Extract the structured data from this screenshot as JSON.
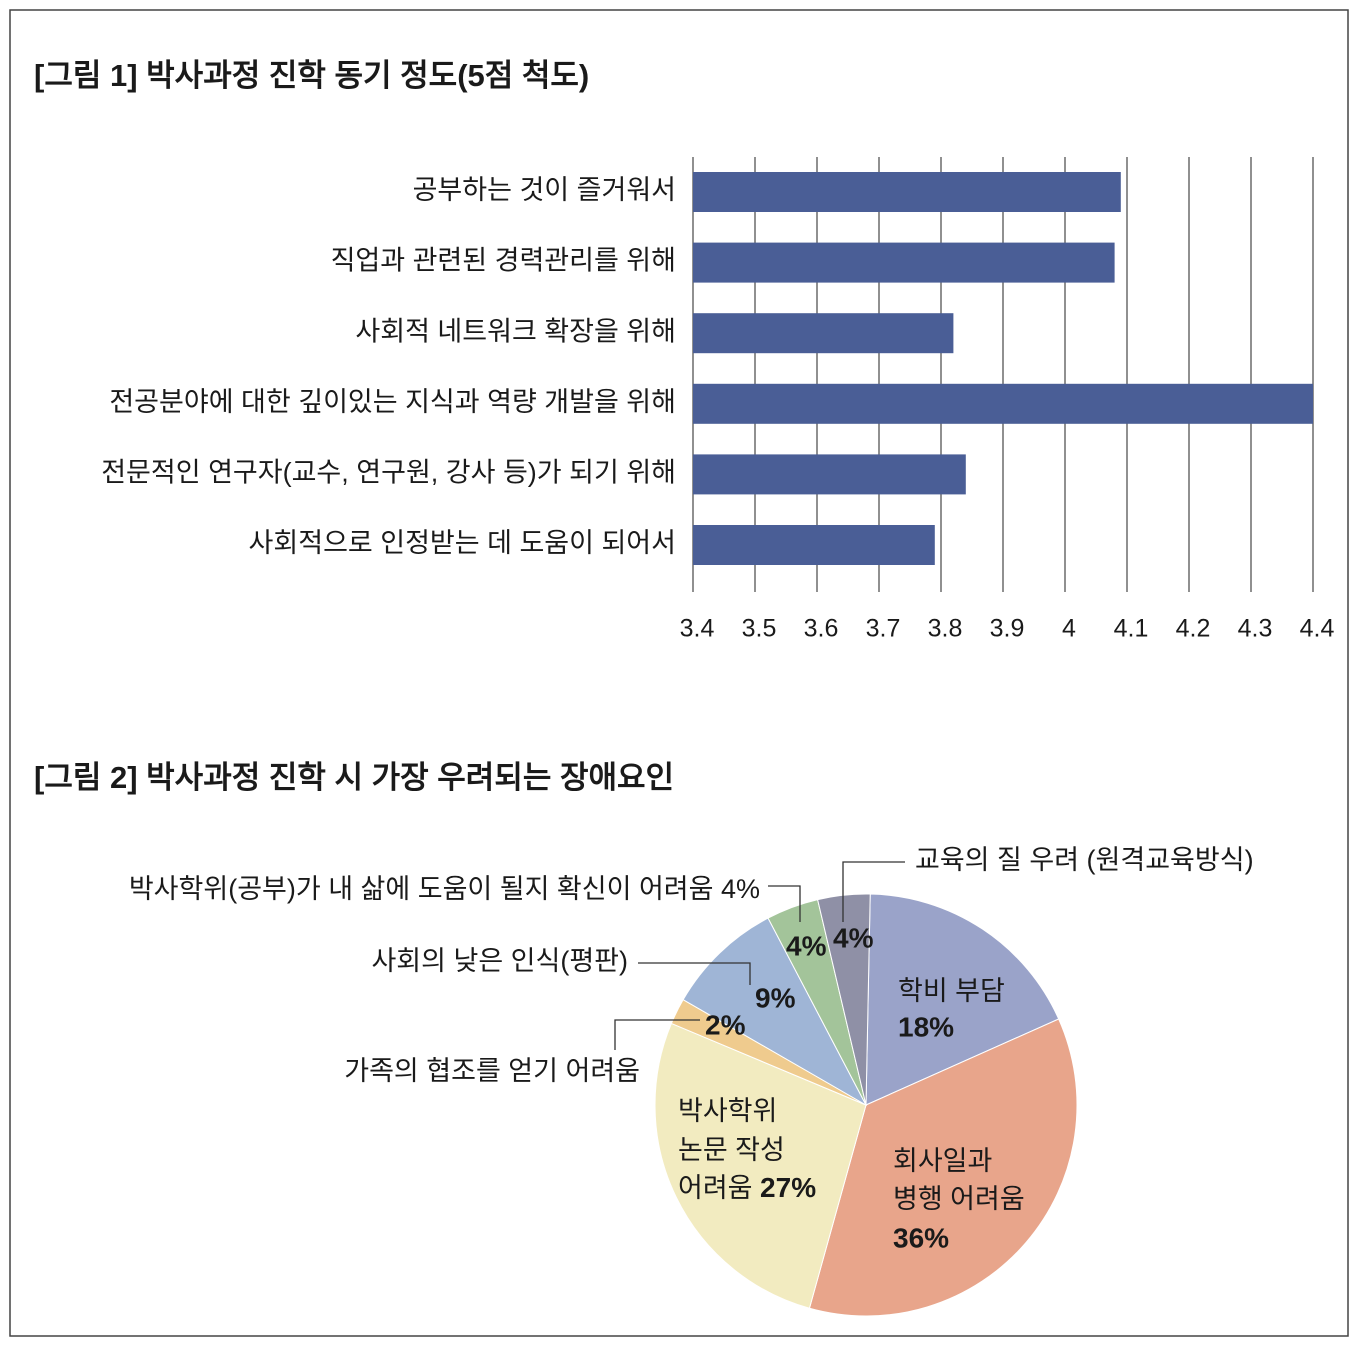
{
  "chart_data": [
    {
      "type": "hbar",
      "title": "[그림 1] 박사과정 진학 동기 정도(5점 척도)",
      "categories": [
        "공부하는 것이 즐거워서",
        "직업과 관련된 경력관리를 위해",
        "사회적 네트워크 확장을 위해",
        "전공분야에 대한 깊이있는 지식과 역량 개발을 위해",
        "전문적인 연구자(교수, 연구원, 강사 등)가 되기 위해",
        "사회적으로 인정받는 데 도움이 되어서"
      ],
      "values": [
        4.09,
        4.08,
        3.82,
        4.4,
        3.84,
        3.79
      ],
      "color": "#4a5e96",
      "xlim": [
        3.4,
        4.4
      ],
      "xticks": [
        3.4,
        3.5,
        3.6,
        3.7,
        3.8,
        3.9,
        4,
        4.1,
        4.2,
        4.3,
        4.4
      ],
      "grid": true
    },
    {
      "type": "pie",
      "title": "[그림 2] 박사과정 진학 시 가장 우려되는 장애요인",
      "categories": [
        [
          "학비 부담"
        ],
        [
          "회사일과",
          "병행 어려움"
        ],
        [
          "박사학위",
          "논문 작성",
          "어려움"
        ],
        [
          "가족의 협조를 얻기 어려움"
        ],
        [
          "사회의 낮은 인식(평판)"
        ],
        [
          "박사학위(공부)가 내 삶에 도움이 될지 확신이 어려움 4%"
        ],
        [
          "교육의 질 우려 (원격교육방식)"
        ]
      ],
      "values": [
        18,
        36,
        27,
        2,
        9,
        4,
        4
      ],
      "value_labels": [
        "18%",
        "36%",
        "27%",
        "2%",
        "9%",
        "4%",
        "4%"
      ],
      "colors": [
        "#9aa3c9",
        "#e8a58b",
        "#f2ebc0",
        "#efcb8e",
        "#9fb5d6",
        "#a3c49a",
        "#8f90a6"
      ]
    }
  ]
}
